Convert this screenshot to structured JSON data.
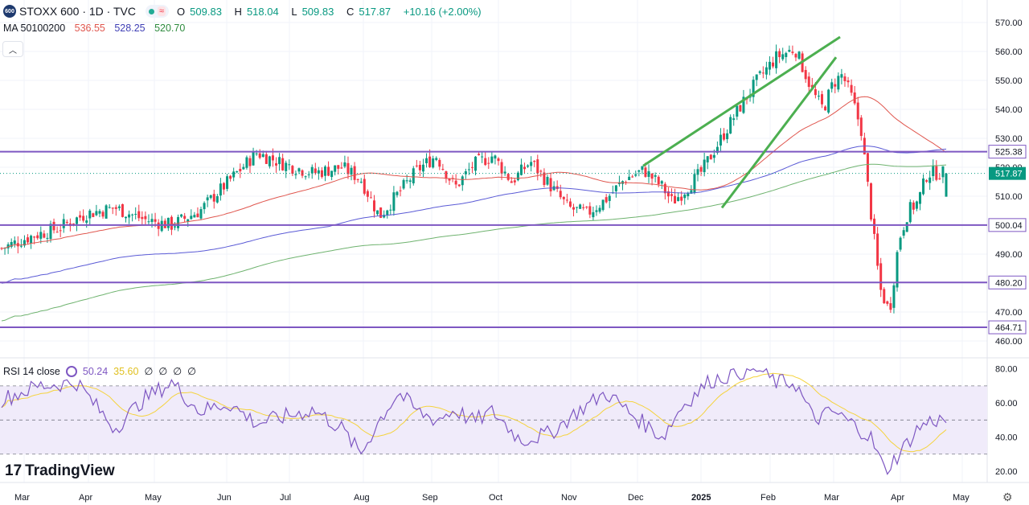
{
  "header": {
    "logo_text": "600",
    "symbol": "STOXX 600 · 1D · TVC",
    "open_label": "O",
    "open": "509.83",
    "high_label": "H",
    "high": "518.04",
    "low_label": "L",
    "low": "509.83",
    "close_label": "C",
    "close": "517.87",
    "change": "+10.16 (+2.00%)"
  },
  "ma_header": {
    "label": "MA 50100200",
    "ma50": "536.55",
    "ma100": "528.25",
    "ma200": "520.70"
  },
  "rsi_header": {
    "label": "RSI 14 close",
    "rsi": "50.24",
    "rsi_ma": "35.60",
    "empty_values": [
      "∅",
      "∅",
      "∅",
      "∅"
    ]
  },
  "brand": "TradingView",
  "colors": {
    "up": "#089981",
    "down": "#f23645",
    "hline": "#7e57c2",
    "trend": "#4caf50",
    "ma50": "#e0574f",
    "ma100": "#5b5bd6",
    "ma200": "#6fb36f",
    "rsi": "#7e57c2",
    "rsi_ma": "#f5d33d",
    "rsi_band": "#f0ebfa"
  },
  "chart_data": {
    "type": "candlestick",
    "price_axis": {
      "min": 460,
      "max": 570,
      "ticks": [
        460,
        470,
        480,
        490,
        500,
        510,
        520,
        530,
        540,
        550,
        560,
        570
      ]
    },
    "time_axis": [
      "Mar",
      "Apr",
      "May",
      "Jun",
      "Jul",
      "Aug",
      "Sep",
      "Oct",
      "Nov",
      "Dec",
      "2025",
      "Feb",
      "Mar",
      "Apr",
      "May"
    ],
    "horizontal_levels": [
      525.38,
      500.04,
      480.2,
      464.71
    ],
    "last_price": 517.87,
    "close_series": [
      [
        0,
        492
      ],
      [
        0.03,
        496
      ],
      [
        0.06,
        499
      ],
      [
        0.09,
        504
      ],
      [
        0.12,
        506
      ],
      [
        0.15,
        502
      ],
      [
        0.18,
        500
      ],
      [
        0.21,
        505
      ],
      [
        0.24,
        515
      ],
      [
        0.27,
        525
      ],
      [
        0.3,
        521
      ],
      [
        0.33,
        518
      ],
      [
        0.36,
        520
      ],
      [
        0.38,
        516
      ],
      [
        0.4,
        503
      ],
      [
        0.42,
        511
      ],
      [
        0.44,
        519
      ],
      [
        0.46,
        524
      ],
      [
        0.48,
        513
      ],
      [
        0.5,
        521
      ],
      [
        0.52,
        524
      ],
      [
        0.54,
        515
      ],
      [
        0.56,
        522
      ],
      [
        0.58,
        514
      ],
      [
        0.6,
        506
      ],
      [
        0.62,
        504
      ],
      [
        0.64,
        509
      ],
      [
        0.66,
        516
      ],
      [
        0.68,
        519
      ],
      [
        0.7,
        513
      ],
      [
        0.71,
        508
      ],
      [
        0.72,
        511
      ],
      [
        0.74,
        518
      ],
      [
        0.76,
        529
      ],
      [
        0.78,
        540
      ],
      [
        0.8,
        550
      ],
      [
        0.82,
        558
      ],
      [
        0.84,
        561
      ],
      [
        0.86,
        545
      ],
      [
        0.87,
        540
      ],
      [
        0.88,
        549
      ],
      [
        0.89,
        552
      ],
      [
        0.9,
        544
      ],
      [
        0.91,
        533
      ],
      [
        0.92,
        505
      ],
      [
        0.93,
        478
      ],
      [
        0.94,
        470
      ],
      [
        0.95,
        495
      ],
      [
        0.96,
        505
      ],
      [
        0.97,
        508
      ],
      [
        0.98,
        518
      ]
    ],
    "moving_averages": [
      {
        "name": "MA 50",
        "last": 536.55
      },
      {
        "name": "MA 100",
        "last": 528.25
      },
      {
        "name": "MA 200",
        "last": 520.7
      }
    ],
    "rsi": {
      "range": [
        20,
        80
      ],
      "ticks": [
        20,
        40,
        60,
        80
      ],
      "levels": [
        70,
        50,
        30
      ],
      "last": 50.24,
      "ma_last": 35.6,
      "series": [
        [
          0,
          62
        ],
        [
          0.04,
          70
        ],
        [
          0.08,
          72
        ],
        [
          0.1,
          58
        ],
        [
          0.12,
          45
        ],
        [
          0.15,
          62
        ],
        [
          0.18,
          72
        ],
        [
          0.21,
          55
        ],
        [
          0.24,
          60
        ],
        [
          0.27,
          48
        ],
        [
          0.3,
          52
        ],
        [
          0.33,
          56
        ],
        [
          0.36,
          45
        ],
        [
          0.38,
          30
        ],
        [
          0.4,
          50
        ],
        [
          0.42,
          66
        ],
        [
          0.44,
          55
        ],
        [
          0.46,
          50
        ],
        [
          0.48,
          56
        ],
        [
          0.5,
          49
        ],
        [
          0.52,
          55
        ],
        [
          0.55,
          38
        ],
        [
          0.58,
          42
        ],
        [
          0.61,
          55
        ],
        [
          0.64,
          66
        ],
        [
          0.67,
          52
        ],
        [
          0.7,
          40
        ],
        [
          0.72,
          58
        ],
        [
          0.75,
          73
        ],
        [
          0.78,
          78
        ],
        [
          0.8,
          80
        ],
        [
          0.82,
          72
        ],
        [
          0.84,
          72
        ],
        [
          0.86,
          50
        ],
        [
          0.88,
          55
        ],
        [
          0.9,
          48
        ],
        [
          0.92,
          40
        ],
        [
          0.935,
          20
        ],
        [
          0.95,
          30
        ],
        [
          0.97,
          45
        ],
        [
          0.985,
          50
        ]
      ]
    }
  }
}
